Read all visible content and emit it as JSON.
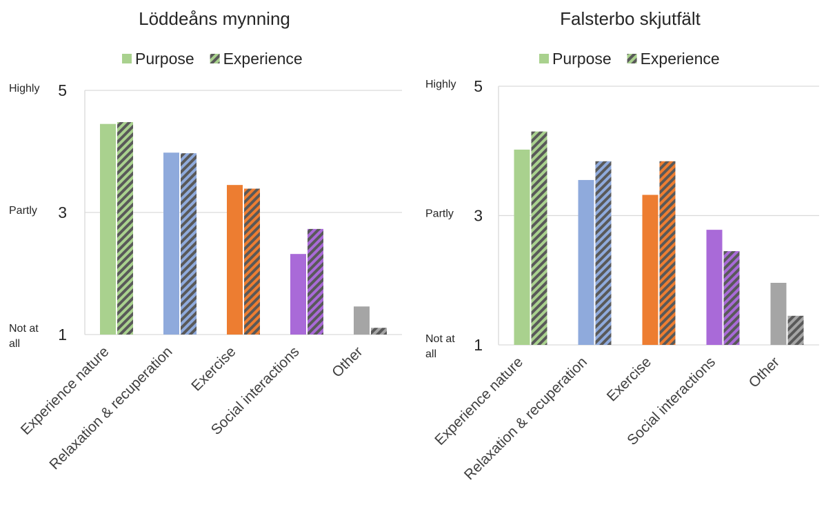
{
  "chart_data": [
    {
      "type": "bar",
      "title": "Löddeåns mynning",
      "categories": [
        "Experience nature",
        "Relaxation & recuperation",
        "Exercise",
        "Social interactions",
        "Other"
      ],
      "series": [
        {
          "name": "Purpose",
          "values": [
            4.45,
            3.98,
            3.45,
            2.32,
            1.46
          ]
        },
        {
          "name": "Experience",
          "values": [
            4.48,
            3.97,
            3.39,
            2.73,
            1.11
          ]
        }
      ],
      "ylim": [
        1,
        5
      ],
      "yticks": [
        "1",
        "3",
        "5"
      ],
      "ytick_labels": [
        "Not at all",
        "Partly",
        "Highly"
      ]
    },
    {
      "type": "bar",
      "title": "Falsterbo skjutfält",
      "categories": [
        "Experience nature",
        "Relaxation & recuperation",
        "Exercise",
        "Social interactions",
        "Other"
      ],
      "series": [
        {
          "name": "Purpose",
          "values": [
            4.02,
            3.55,
            3.32,
            2.78,
            1.96
          ]
        },
        {
          "name": "Experience",
          "values": [
            4.3,
            3.84,
            3.84,
            2.45,
            1.45
          ]
        }
      ],
      "ylim": [
        1,
        5
      ],
      "yticks": [
        "1",
        "3",
        "5"
      ],
      "ytick_labels": [
        "Not at all",
        "Partly",
        "Highly"
      ]
    }
  ],
  "category_colors": [
    "#a9d18e",
    "#8faadc",
    "#ed7d31",
    "#a96ad8",
    "#a5a5a5"
  ],
  "hatch_color": "#595959",
  "grid_color": "#d9d9d9",
  "legend": {
    "position": "top",
    "items": [
      "Purpose",
      "Experience"
    ]
  }
}
